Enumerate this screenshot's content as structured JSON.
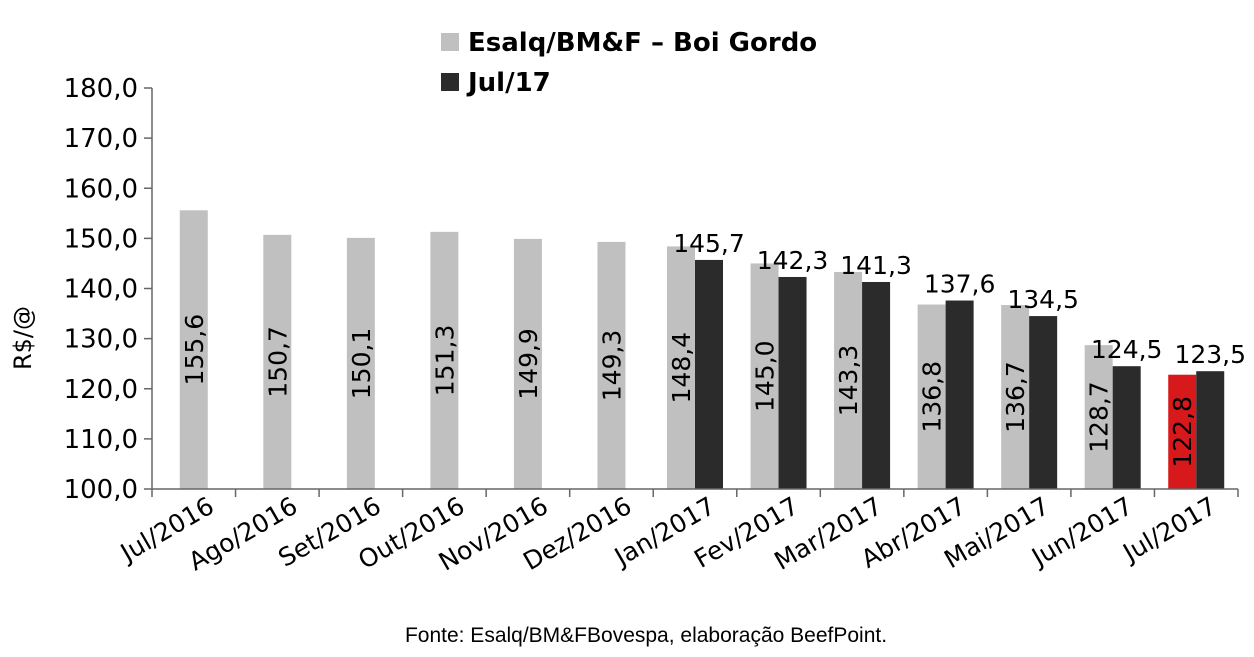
{
  "chart_data": {
    "type": "bar",
    "title": "",
    "xlabel": "",
    "ylabel": "R$/@",
    "ylim": [
      100,
      180
    ],
    "yticks": [
      "100,0",
      "110,0",
      "120,0",
      "130,0",
      "140,0",
      "150,0",
      "160,0",
      "170,0",
      "180,0"
    ],
    "categories": [
      "Jul/2016",
      "Ago/2016",
      "Set/2016",
      "Out/2016",
      "Nov/2016",
      "Dez/2016",
      "Jan/2017",
      "Fev/2017",
      "Mar/2017",
      "Abr/2017",
      "Mai/2017",
      "Jun/2017",
      "Jul/2017"
    ],
    "series": [
      {
        "name": "Esalq/BM&F – Boi Gordo",
        "color": "#c0c0c0",
        "values": [
          155.6,
          150.7,
          150.1,
          151.3,
          149.9,
          149.3,
          148.4,
          145.0,
          143.3,
          136.8,
          136.7,
          128.7,
          122.8
        ],
        "labels": [
          "155,6",
          "150,7",
          "150,1",
          "151,3",
          "149,9",
          "149,3",
          "148,4",
          "145,0",
          "143,3",
          "136,8",
          "136,7",
          "128,7",
          "122,8"
        ],
        "highlight_index": 12,
        "highlight_color": "#d7191c"
      },
      {
        "name": "Jul/17",
        "color": "#2b2b2b",
        "values": [
          null,
          null,
          null,
          null,
          null,
          null,
          145.7,
          142.3,
          141.3,
          137.6,
          134.5,
          124.5,
          123.5
        ],
        "labels": [
          "",
          "",
          "",
          "",
          "",
          "",
          "145,7",
          "142,3",
          "141,3",
          "137,6",
          "134,5",
          "124,5",
          "123,5"
        ]
      }
    ],
    "legend_position": "top-center",
    "grid": false,
    "source": "Fonte: Esalq/BM&FBovespa, elaboração BeefPoint."
  }
}
